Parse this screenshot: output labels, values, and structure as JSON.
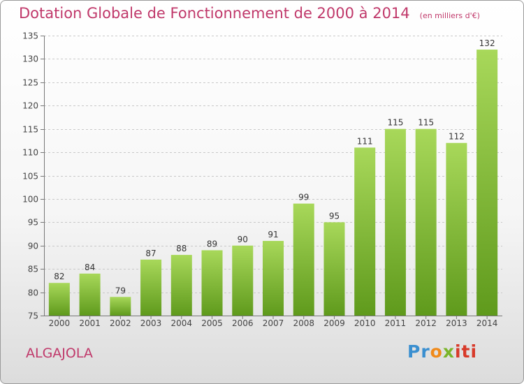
{
  "header": {
    "title": "Dotation Globale de Fonctionnement de 2000 à 2014",
    "unit": "(en milliers d'€)"
  },
  "footer": {
    "commune": "ALGAJOLA",
    "brand": {
      "p": "Pr",
      "o": "o",
      "x": "x",
      "iti": "iti"
    }
  },
  "colors": {
    "title": "#c0386a",
    "bar_light": "#a8d85a",
    "bar_dark": "#5f9a1c",
    "grid": "#c8c8c8"
  },
  "chart_data": {
    "type": "bar",
    "title": "Dotation Globale de Fonctionnement de 2000 à 2014",
    "categories": [
      "2000",
      "2001",
      "2002",
      "2003",
      "2004",
      "2005",
      "2006",
      "2007",
      "2008",
      "2009",
      "2010",
      "2011",
      "2012",
      "2013",
      "2014"
    ],
    "values": [
      82,
      84,
      79,
      87,
      88,
      89,
      90,
      91,
      99,
      95,
      111,
      115,
      115,
      112,
      132
    ],
    "xlabel": "",
    "ylabel": "",
    "ylim": [
      75,
      135
    ],
    "yticks": [
      75,
      80,
      85,
      90,
      95,
      100,
      105,
      110,
      115,
      120,
      125,
      130,
      135
    ],
    "grid": "horizontal dashed",
    "legend": "none",
    "data_labels": true
  }
}
